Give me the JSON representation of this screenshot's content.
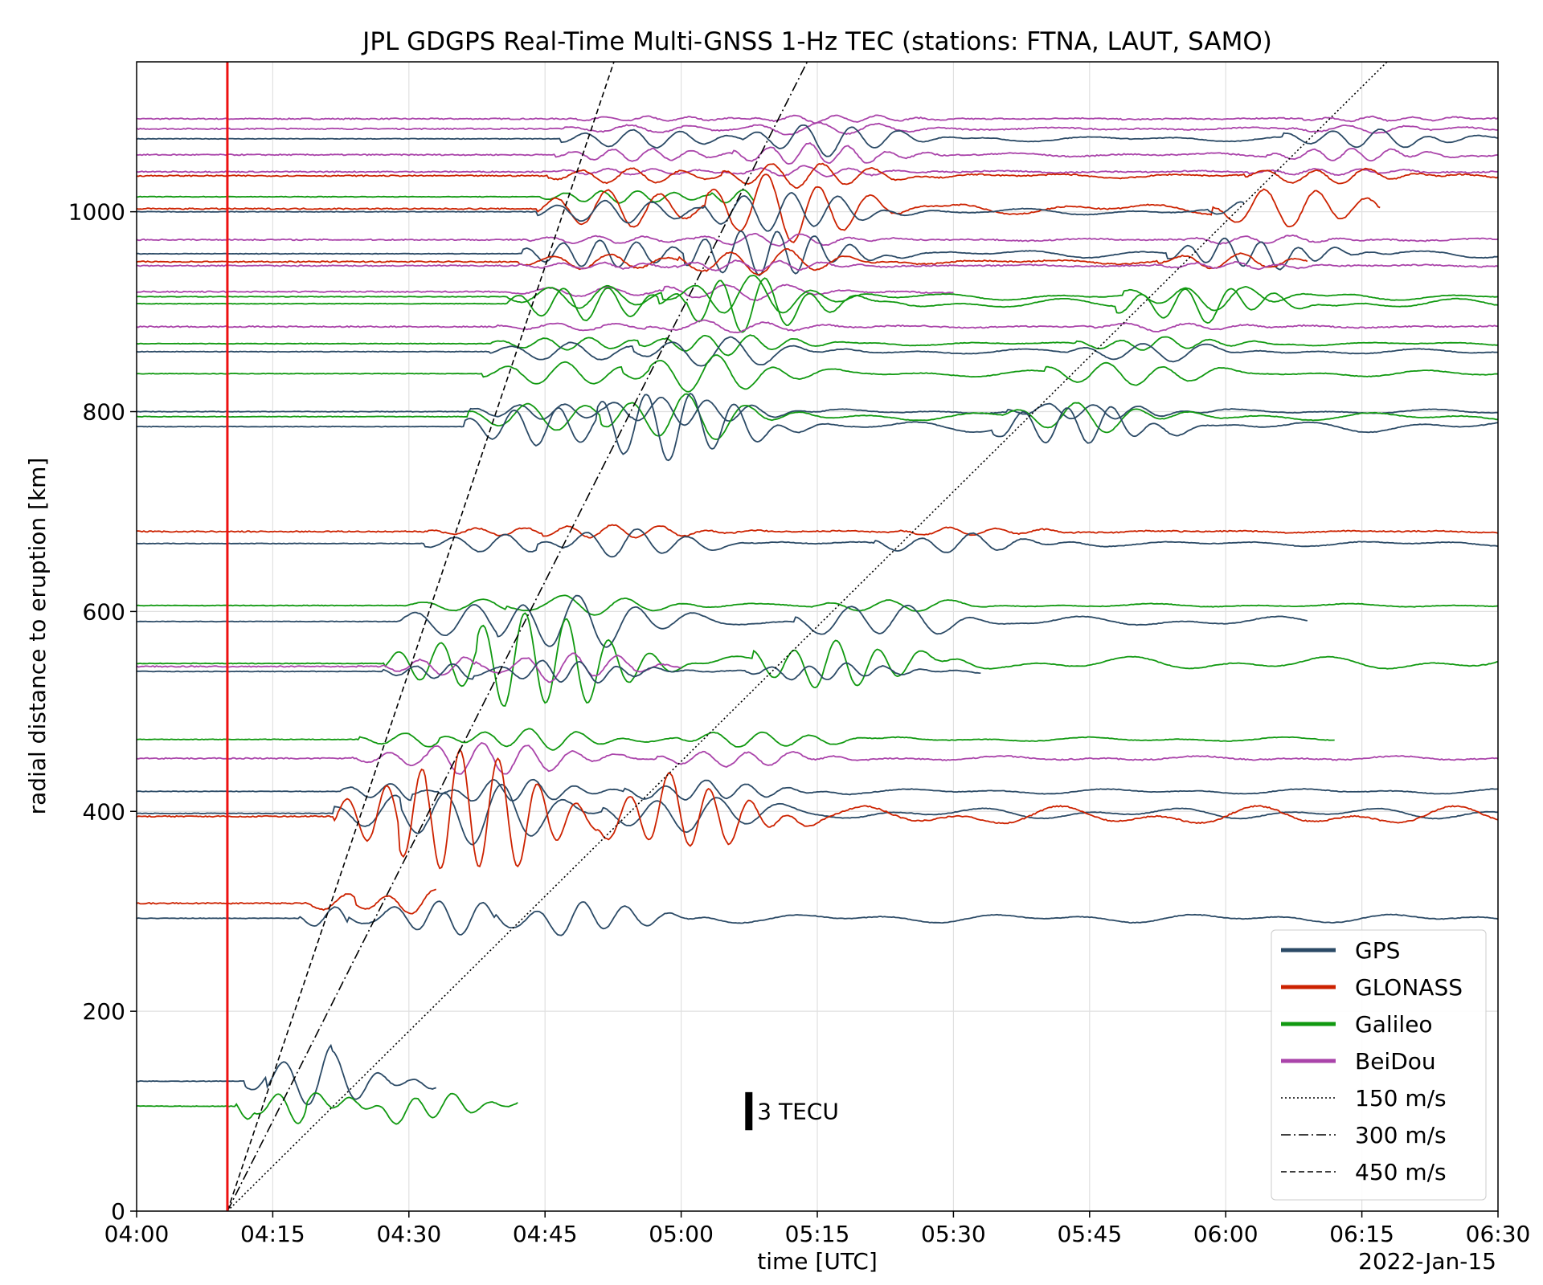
{
  "chart_data": {
    "type": "line",
    "title": "JPL GDGPS Real-Time Multi-GNSS 1-Hz TEC (stations: FTNA, LAUT, SAMO)",
    "xlabel": "time [UTC]",
    "ylabel": "radial distance to eruption [km]",
    "date_label": "2022-Jan-15",
    "xlim": [
      "04:00",
      "06:30"
    ],
    "ylim": [
      0,
      1150
    ],
    "x_ticks": [
      "04:00",
      "04:15",
      "04:30",
      "04:45",
      "05:00",
      "05:15",
      "05:30",
      "05:45",
      "06:00",
      "06:15",
      "06:30"
    ],
    "y_ticks": [
      0,
      200,
      400,
      600,
      800,
      1000
    ],
    "grid": true,
    "eruption_time": "04:10",
    "eruption_color": "#ee1111",
    "scale_bar": {
      "label": "3 TECU",
      "tecu": 3,
      "time": "05:07.5",
      "distance_km": 100
    },
    "km_per_tecu": 12.7,
    "legend_position": "bottom-right",
    "systems": [
      {
        "name": "GPS",
        "color": "#2b4a66"
      },
      {
        "name": "GLONASS",
        "color": "#cc2200"
      },
      {
        "name": "Galileo",
        "color": "#119911"
      },
      {
        "name": "BeiDou",
        "color": "#aa44aa"
      }
    ],
    "speed_lines": [
      {
        "label": "150 m/s",
        "speed_ms": 150,
        "style": "dotted"
      },
      {
        "label": "300 m/s",
        "speed_ms": 300,
        "style": "dashdot"
      },
      {
        "label": "450 m/s",
        "speed_ms": 450,
        "style": "dashed"
      }
    ],
    "traces": [
      {
        "system": "BeiDou",
        "distance_km": 1093,
        "start": "04:00",
        "end": "06:30",
        "disturbance_tecu": 0.3
      },
      {
        "system": "BeiDou",
        "distance_km": 1083,
        "start": "04:00",
        "end": "06:30",
        "disturbance_tecu": 0.5
      },
      {
        "system": "GPS",
        "distance_km": 1073,
        "start": "04:00",
        "end": "06:30",
        "disturbance_tecu": 1.2
      },
      {
        "system": "BeiDou",
        "distance_km": 1057,
        "start": "04:00",
        "end": "06:30",
        "disturbance_tecu": 0.8
      },
      {
        "system": "BeiDou",
        "distance_km": 1040,
        "start": "04:00",
        "end": "06:30",
        "disturbance_tecu": 0.4
      },
      {
        "system": "GLONASS",
        "distance_km": 1036,
        "start": "04:00",
        "end": "06:30",
        "disturbance_tecu": 1.0
      },
      {
        "system": "Galileo",
        "distance_km": 1015,
        "start": "04:00",
        "end": "05:08",
        "disturbance_tecu": 0.8
      },
      {
        "system": "GLONASS",
        "distance_km": 1003,
        "start": "04:00",
        "end": "06:17",
        "disturbance_tecu": 2.5
      },
      {
        "system": "GPS",
        "distance_km": 1000,
        "start": "04:00",
        "end": "06:02",
        "disturbance_tecu": 1.5
      },
      {
        "system": "BeiDou",
        "distance_km": 972,
        "start": "04:00",
        "end": "06:30",
        "disturbance_tecu": 0.5
      },
      {
        "system": "GPS",
        "distance_km": 958,
        "start": "04:00",
        "end": "06:30",
        "disturbance_tecu": 1.8
      },
      {
        "system": "GLONASS",
        "distance_km": 950,
        "start": "04:00",
        "end": "06:09",
        "disturbance_tecu": 1.0
      },
      {
        "system": "BeiDou",
        "distance_km": 946,
        "start": "04:00",
        "end": "06:30",
        "disturbance_tecu": 0.4
      },
      {
        "system": "BeiDou",
        "distance_km": 920,
        "start": "04:00",
        "end": "05:30",
        "disturbance_tecu": 0.6
      },
      {
        "system": "Galileo",
        "distance_km": 915,
        "start": "04:00",
        "end": "06:30",
        "disturbance_tecu": 1.5
      },
      {
        "system": "Galileo",
        "distance_km": 908,
        "start": "04:00",
        "end": "06:30",
        "disturbance_tecu": 2.2
      },
      {
        "system": "BeiDou",
        "distance_km": 885,
        "start": "04:00",
        "end": "06:30",
        "disturbance_tecu": 0.5
      },
      {
        "system": "Galileo",
        "distance_km": 868,
        "start": "04:00",
        "end": "06:30",
        "disturbance_tecu": 0.8
      },
      {
        "system": "GPS",
        "distance_km": 860,
        "start": "04:00",
        "end": "06:30",
        "disturbance_tecu": 1.2
      },
      {
        "system": "Galileo",
        "distance_km": 838,
        "start": "04:00",
        "end": "06:30",
        "disturbance_tecu": 1.5
      },
      {
        "system": "GPS",
        "distance_km": 800,
        "start": "04:00",
        "end": "06:30",
        "disturbance_tecu": 1.0
      },
      {
        "system": "Galileo",
        "distance_km": 795,
        "start": "04:00",
        "end": "06:30",
        "disturbance_tecu": 1.8
      },
      {
        "system": "GPS",
        "distance_km": 785,
        "start": "04:00",
        "end": "06:30",
        "disturbance_tecu": 2.5
      },
      {
        "system": "GLONASS",
        "distance_km": 680,
        "start": "04:00",
        "end": "06:30",
        "disturbance_tecu": 0.5
      },
      {
        "system": "GPS",
        "distance_km": 668,
        "start": "04:00",
        "end": "06:30",
        "disturbance_tecu": 1.2
      },
      {
        "system": "Galileo",
        "distance_km": 606,
        "start": "04:00",
        "end": "06:30",
        "disturbance_tecu": 0.8
      },
      {
        "system": "GPS",
        "distance_km": 590,
        "start": "04:00",
        "end": "06:09",
        "disturbance_tecu": 2.2
      },
      {
        "system": "Galileo",
        "distance_km": 548,
        "start": "04:00",
        "end": "06:30",
        "disturbance_tecu": 3.0
      },
      {
        "system": "BeiDou",
        "distance_km": 545,
        "start": "04:00",
        "end": "05:00",
        "disturbance_tecu": 1.2
      },
      {
        "system": "GPS",
        "distance_km": 540,
        "start": "04:00",
        "end": "05:33",
        "disturbance_tecu": 1.0
      },
      {
        "system": "Galileo",
        "distance_km": 472,
        "start": "04:00",
        "end": "06:12",
        "disturbance_tecu": 1.0
      },
      {
        "system": "BeiDou",
        "distance_km": 453,
        "start": "04:00",
        "end": "06:30",
        "disturbance_tecu": 1.0
      },
      {
        "system": "GPS",
        "distance_km": 420,
        "start": "04:00",
        "end": "06:30",
        "disturbance_tecu": 1.2
      },
      {
        "system": "GPS",
        "distance_km": 398,
        "start": "04:00",
        "end": "06:30",
        "disturbance_tecu": 2.5
      },
      {
        "system": "GLONASS",
        "distance_km": 395,
        "start": "04:00",
        "end": "06:30",
        "disturbance_tecu": 4.5
      },
      {
        "system": "GLONASS",
        "distance_km": 308,
        "start": "04:00",
        "end": "04:33",
        "disturbance_tecu": 1.5
      },
      {
        "system": "GPS",
        "distance_km": 293,
        "start": "04:00",
        "end": "06:30",
        "disturbance_tecu": 2.0
      },
      {
        "system": "GPS",
        "distance_km": 130,
        "start": "04:00",
        "end": "04:33",
        "disturbance_tecu": 2.5
      },
      {
        "system": "Galileo",
        "distance_km": 105,
        "start": "04:00",
        "end": "04:42",
        "disturbance_tecu": 3.5
      }
    ]
  }
}
